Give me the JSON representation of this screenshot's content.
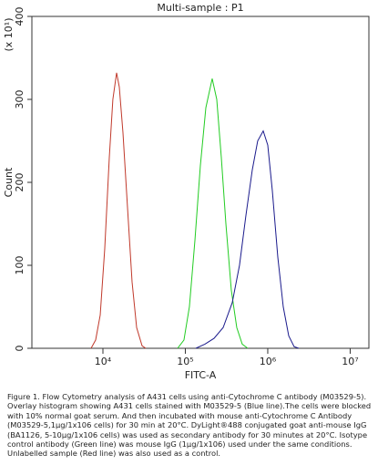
{
  "chart_data": {
    "type": "line",
    "title": "Multi-sample : P1",
    "x_label": "FITC-A",
    "y_label": "Count",
    "y_multiplier": "(x 10¹)",
    "x_scale": "log",
    "xlim": [
      1374,
      16870000
    ],
    "xticks": [
      {
        "value": 10000,
        "label": "10⁴"
      },
      {
        "value": 100000,
        "label": "10⁵"
      },
      {
        "value": 1000000,
        "label": "10⁶"
      },
      {
        "value": 10000000,
        "label": "10⁷"
      }
    ],
    "ylim": [
      0,
      400
    ],
    "yticks": [
      0,
      100,
      200,
      300,
      400
    ],
    "series": [
      {
        "color": "#c0392b",
        "x": [
          7180,
          8160,
          9270,
          10520,
          11950,
          13200,
          14650,
          15800,
          17500,
          19870,
          22580,
          25650,
          29860,
          33100
        ],
        "values": [
          0,
          10,
          40,
          120,
          230,
          300,
          332,
          315,
          260,
          170,
          80,
          25,
          3,
          0
        ]
      },
      {
        "color": "#22cc22",
        "x": [
          80500,
          96200,
          112000,
          130700,
          152100,
          177400,
          211800,
          240500,
          273200,
          310500,
          361200,
          420700,
          490000,
          571000
        ],
        "values": [
          0,
          10,
          50,
          130,
          220,
          290,
          325,
          300,
          230,
          150,
          70,
          25,
          5,
          0
        ]
      },
      {
        "color": "#1a1a8c",
        "x": [
          134000,
          173000,
          223000,
          287700,
          370700,
          454000,
          543000,
          649000,
          755000,
          881000,
          1000000,
          1136000,
          1324000,
          1542000,
          1796000,
          2090000,
          2377000
        ],
        "values": [
          0,
          5,
          12,
          25,
          55,
          100,
          160,
          215,
          250,
          262,
          245,
          190,
          110,
          50,
          15,
          2,
          0
        ]
      }
    ],
    "caption": "Figure 1. Flow Cytometry analysis of A431 cells using anti-Cytochrome C antibody (M03529-5). Overlay histogram showing A431 cells stained with M03529-5 (Blue line).The cells were blocked with 10% normal goat serum. And then incubated with mouse anti-Cytochrome C Antibody (M03529-5,1μg/1x106 cells) for 30 min at 20°C. DyLight®488 conjugated goat anti-mouse IgG (BA1126, 5-10μg/1x106 cells) was used as secondary antibody for 30 minutes at 20°C. Isotype control antibody (Green line) was mouse IgG (1μg/1x106) used under the same conditions. Unlabelled sample (Red line) was also used as a control."
  }
}
